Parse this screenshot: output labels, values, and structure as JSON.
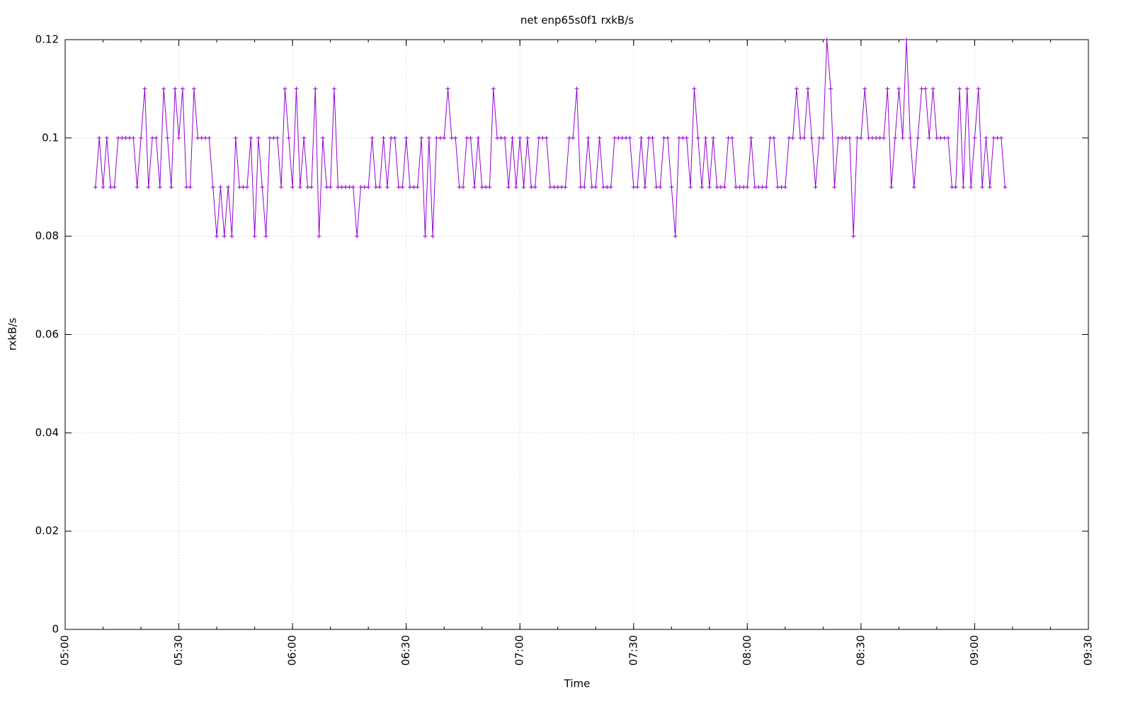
{
  "chart_data": {
    "type": "line",
    "title": "net enp65s0f1 rxkB/s",
    "x_label": "Time",
    "y_label": "rxkB/s",
    "grid": true,
    "xlim": [
      "05:00",
      "09:30"
    ],
    "xticks": [
      "05:00",
      "05:30",
      "06:00",
      "06:30",
      "07:00",
      "07:30",
      "08:00",
      "08:30",
      "09:00",
      "09:30"
    ],
    "ylim": [
      0,
      0.12
    ],
    "yticks": [
      0,
      0.02,
      0.04,
      0.06,
      0.08,
      0.1,
      0.12
    ],
    "x": [
      "05:08",
      "05:09",
      "05:10",
      "05:11",
      "05:12",
      "05:13",
      "05:14",
      "05:15",
      "05:16",
      "05:17",
      "05:18",
      "05:19",
      "05:20",
      "05:21",
      "05:22",
      "05:23",
      "05:24",
      "05:25",
      "05:26",
      "05:27",
      "05:28",
      "05:29",
      "05:30",
      "05:31",
      "05:32",
      "05:33",
      "05:34",
      "05:35",
      "05:36",
      "05:37",
      "05:38",
      "05:39",
      "05:40",
      "05:41",
      "05:42",
      "05:43",
      "05:44",
      "05:45",
      "05:46",
      "05:47",
      "05:48",
      "05:49",
      "05:50",
      "05:51",
      "05:52",
      "05:53",
      "05:54",
      "05:55",
      "05:56",
      "05:57",
      "05:58",
      "05:59",
      "06:00",
      "06:01",
      "06:02",
      "06:03",
      "06:04",
      "06:05",
      "06:06",
      "06:07",
      "06:08",
      "06:09",
      "06:10",
      "06:11",
      "06:12",
      "06:13",
      "06:14",
      "06:15",
      "06:16",
      "06:17",
      "06:18",
      "06:19",
      "06:20",
      "06:21",
      "06:22",
      "06:23",
      "06:24",
      "06:25",
      "06:26",
      "06:27",
      "06:28",
      "06:29",
      "06:30",
      "06:31",
      "06:32",
      "06:33",
      "06:34",
      "06:35",
      "06:36",
      "06:37",
      "06:38",
      "06:39",
      "06:40",
      "06:41",
      "06:42",
      "06:43",
      "06:44",
      "06:45",
      "06:46",
      "06:47",
      "06:48",
      "06:49",
      "06:50",
      "06:51",
      "06:52",
      "06:53",
      "06:54",
      "06:55",
      "06:56",
      "06:57",
      "06:58",
      "06:59",
      "07:00",
      "07:01",
      "07:02",
      "07:03",
      "07:04",
      "07:05",
      "07:06",
      "07:07",
      "07:08",
      "07:09",
      "07:10",
      "07:11",
      "07:12",
      "07:13",
      "07:14",
      "07:15",
      "07:16",
      "07:17",
      "07:18",
      "07:19",
      "07:20",
      "07:21",
      "07:22",
      "07:23",
      "07:24",
      "07:25",
      "07:26",
      "07:27",
      "07:28",
      "07:29",
      "07:30",
      "07:31",
      "07:32",
      "07:33",
      "07:34",
      "07:35",
      "07:36",
      "07:37",
      "07:38",
      "07:39",
      "07:40",
      "07:41",
      "07:42",
      "07:43",
      "07:44",
      "07:45",
      "07:46",
      "07:47",
      "07:48",
      "07:49",
      "07:50",
      "07:51",
      "07:52",
      "07:53",
      "07:54",
      "07:55",
      "07:56",
      "07:57",
      "07:58",
      "07:59",
      "08:00",
      "08:01",
      "08:02",
      "08:03",
      "08:04",
      "08:05",
      "08:06",
      "08:07",
      "08:08",
      "08:09",
      "08:10",
      "08:11",
      "08:12",
      "08:13",
      "08:14",
      "08:15",
      "08:16",
      "08:17",
      "08:18",
      "08:19",
      "08:20",
      "08:21",
      "08:22",
      "08:23",
      "08:24",
      "08:25",
      "08:26",
      "08:27",
      "08:28",
      "08:29",
      "08:30",
      "08:31",
      "08:32",
      "08:33",
      "08:34",
      "08:35",
      "08:36",
      "08:37",
      "08:38",
      "08:39",
      "08:40",
      "08:41",
      "08:42",
      "08:43",
      "08:44",
      "08:45",
      "08:46",
      "08:47",
      "08:48",
      "08:49",
      "08:50",
      "08:51",
      "08:52",
      "08:53",
      "08:54",
      "08:55",
      "08:56",
      "08:57",
      "08:58",
      "08:59",
      "09:00",
      "09:01",
      "09:02",
      "09:03",
      "09:04",
      "09:05",
      "09:06",
      "09:07",
      "09:08"
    ],
    "series": [
      {
        "color": "#9400d3",
        "values": [
          0.09,
          0.1,
          0.09,
          0.1,
          0.09,
          0.09,
          0.1,
          0.1,
          0.1,
          0.1,
          0.1,
          0.09,
          0.1,
          0.11,
          0.09,
          0.1,
          0.1,
          0.09,
          0.11,
          0.1,
          0.09,
          0.11,
          0.1,
          0.11,
          0.09,
          0.09,
          0.11,
          0.1,
          0.1,
          0.1,
          0.1,
          0.09,
          0.08,
          0.09,
          0.08,
          0.09,
          0.08,
          0.1,
          0.09,
          0.09,
          0.09,
          0.1,
          0.08,
          0.1,
          0.09,
          0.08,
          0.1,
          0.1,
          0.1,
          0.09,
          0.11,
          0.1,
          0.09,
          0.11,
          0.09,
          0.1,
          0.09,
          0.09,
          0.11,
          0.08,
          0.1,
          0.09,
          0.09,
          0.11,
          0.09,
          0.09,
          0.09,
          0.09,
          0.09,
          0.08,
          0.09,
          0.09,
          0.09,
          0.1,
          0.09,
          0.09,
          0.1,
          0.09,
          0.1,
          0.1,
          0.09,
          0.09,
          0.1,
          0.09,
          0.09,
          0.09,
          0.1,
          0.08,
          0.1,
          0.08,
          0.1,
          0.1,
          0.1,
          0.11,
          0.1,
          0.1,
          0.09,
          0.09,
          0.1,
          0.1,
          0.09,
          0.1,
          0.09,
          0.09,
          0.09,
          0.11,
          0.1,
          0.1,
          0.1,
          0.09,
          0.1,
          0.09,
          0.1,
          0.09,
          0.1,
          0.09,
          0.09,
          0.1,
          0.1,
          0.1,
          0.09,
          0.09,
          0.09,
          0.09,
          0.09,
          0.1,
          0.1,
          0.11,
          0.09,
          0.09,
          0.1,
          0.09,
          0.09,
          0.1,
          0.09,
          0.09,
          0.09,
          0.1,
          0.1,
          0.1,
          0.1,
          0.1,
          0.09,
          0.09,
          0.1,
          0.09,
          0.1,
          0.1,
          0.09,
          0.09,
          0.1,
          0.1,
          0.09,
          0.08,
          0.1,
          0.1,
          0.1,
          0.09,
          0.11,
          0.1,
          0.09,
          0.1,
          0.09,
          0.1,
          0.09,
          0.09,
          0.09,
          0.1,
          0.1,
          0.09,
          0.09,
          0.09,
          0.09,
          0.1,
          0.09,
          0.09,
          0.09,
          0.09,
          0.1,
          0.1,
          0.09,
          0.09,
          0.09,
          0.1,
          0.1,
          0.11,
          0.1,
          0.1,
          0.11,
          0.1,
          0.09,
          0.1,
          0.1,
          0.12,
          0.11,
          0.09,
          0.1,
          0.1,
          0.1,
          0.1,
          0.08,
          0.1,
          0.1,
          0.11,
          0.1,
          0.1,
          0.1,
          0.1,
          0.1,
          0.11,
          0.09,
          0.1,
          0.11,
          0.1,
          0.12,
          0.1,
          0.09,
          0.1,
          0.11,
          0.11,
          0.1,
          0.11,
          0.1,
          0.1,
          0.1,
          0.1,
          0.09,
          0.09,
          0.11,
          0.09,
          0.11,
          0.09,
          0.1,
          0.11,
          0.09,
          0.1,
          0.09,
          0.1,
          0.1,
          0.1,
          0.09
        ]
      }
    ]
  }
}
